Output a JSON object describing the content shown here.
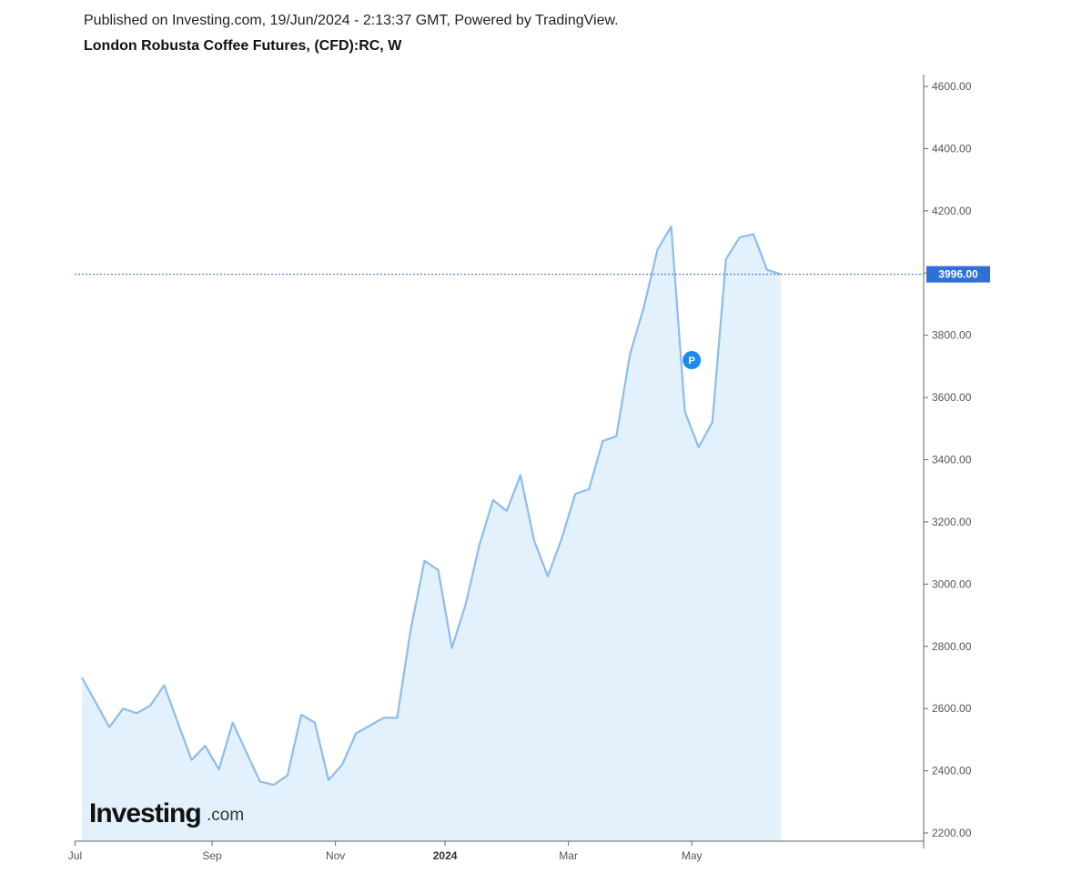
{
  "header": {
    "published": "Published on Investing.com, 19/Jun/2024 - 2:13:37 GMT, Powered by TradingView.",
    "title": "London Robusta Coffee Futures, (CFD):RC, W"
  },
  "logo": {
    "main": "Investing",
    "sub": ".com"
  },
  "colors": {
    "line": "#8dbdec",
    "fill": "#e2f1fb",
    "price_tag": "#2f6fd6",
    "marker": "#1a8ce8"
  },
  "chart_data": {
    "type": "area",
    "y_ticks": [
      "4600.00",
      "4400.00",
      "4200.00",
      "4000.00",
      "3800.00",
      "3600.00",
      "3400.00",
      "3200.00",
      "3000.00",
      "2800.00",
      "2600.00",
      "2400.00",
      "2200.00"
    ],
    "ylim": [
      2200,
      4600
    ],
    "x_ticks": [
      {
        "label": "Jul",
        "index": -0.5
      },
      {
        "label": "Sep",
        "index": 9.5
      },
      {
        "label": "Nov",
        "index": 18.5
      },
      {
        "label": "2024",
        "index": 26.5,
        "bold": true
      },
      {
        "label": "Mar",
        "index": 35.5
      },
      {
        "label": "May",
        "index": 44.5
      }
    ],
    "values": [
      2700,
      2620,
      2540,
      2600,
      2585,
      2610,
      2675,
      2555,
      2435,
      2480,
      2405,
      2555,
      2460,
      2365,
      2355,
      2385,
      2580,
      2555,
      2370,
      2420,
      2520,
      2545,
      2570,
      2570,
      2855,
      3075,
      3045,
      2795,
      2935,
      3125,
      3270,
      3235,
      3350,
      3140,
      3025,
      3145,
      3290,
      3305,
      3460,
      3475,
      3740,
      3890,
      4075,
      4150,
      3555,
      3440,
      3520,
      4045,
      4115,
      4125,
      4010,
      3996
    ],
    "last_price": "3996.00",
    "marker": {
      "label": "P",
      "index": 44.5,
      "value": 3720
    }
  }
}
